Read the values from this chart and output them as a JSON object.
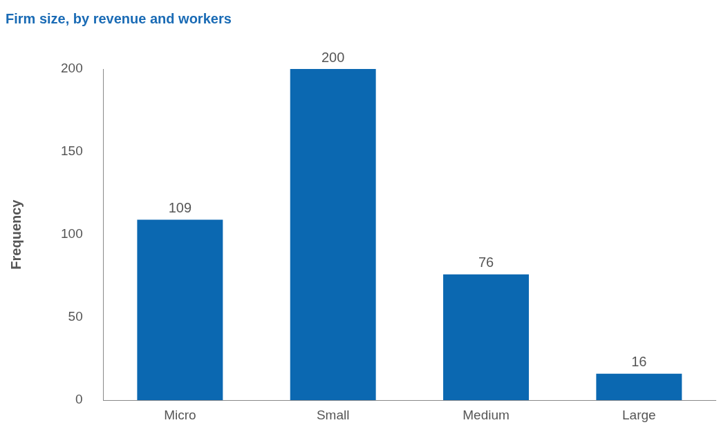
{
  "chart_data": {
    "type": "bar",
    "title": "Firm size, by revenue and workers",
    "ylabel": "Frequency",
    "categories": [
      "Micro",
      "Small",
      "Medium",
      "Large"
    ],
    "values": [
      109,
      200,
      76,
      16
    ],
    "color": "#0b68b1",
    "ylim": [
      0,
      200
    ],
    "yticks": [
      0,
      50,
      100,
      150,
      200
    ],
    "grid": false,
    "legend": false,
    "data_labels": true
  }
}
